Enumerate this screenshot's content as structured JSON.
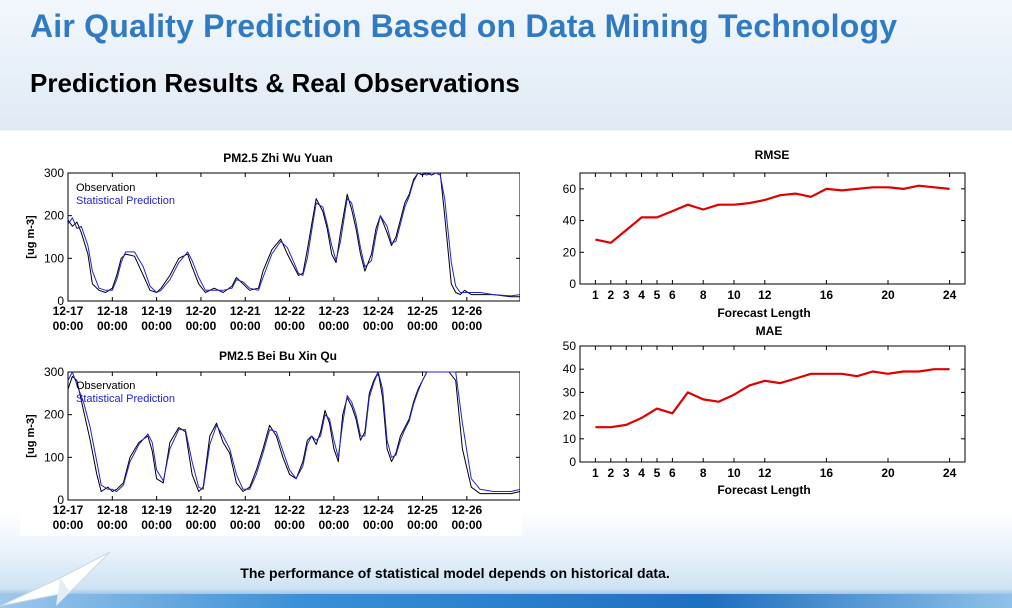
{
  "header": {
    "title": "Air Quality Prediction Based on Data Mining Technology",
    "subtitle": "Prediction Results & Real Observations"
  },
  "caption": "The performance of statistical model depends on historical data.",
  "colors": {
    "title": "#2f7ac2",
    "observation": "#000000",
    "prediction": "#2323d8",
    "error_line": "#e00000"
  },
  "chart_data": [
    {
      "type": "line",
      "title": "PM2.5  Zhi Wu Yuan",
      "ylabel": "[ug m-3]",
      "xlabel": "",
      "ylim": [
        0,
        300
      ],
      "yticks": [
        0,
        100,
        200,
        300
      ],
      "xlim": [
        0,
        10.2
      ],
      "xticks": [
        0,
        1,
        2,
        3,
        4,
        5,
        6,
        7,
        8,
        9
      ],
      "xtick_labels": [
        [
          "12-17",
          "00:00"
        ],
        [
          "12-18",
          "00:00"
        ],
        [
          "12-19",
          "00:00"
        ],
        [
          "12-20",
          "00:00"
        ],
        [
          "12-21",
          "00:00"
        ],
        [
          "12-22",
          "00:00"
        ],
        [
          "12-23",
          "00:00"
        ],
        [
          "12-24",
          "00:00"
        ],
        [
          "12-25",
          "00:00"
        ],
        [
          "12-26",
          "00:00"
        ]
      ],
      "legend": "top-left",
      "series": [
        {
          "name": "Observation",
          "color": "#000000",
          "x": [
            0,
            0.1,
            0.2,
            0.3,
            0.45,
            0.55,
            0.7,
            0.85,
            1.0,
            1.1,
            1.2,
            1.3,
            1.5,
            1.7,
            1.85,
            2.0,
            2.1,
            2.3,
            2.5,
            2.7,
            2.8,
            2.95,
            3.1,
            3.3,
            3.5,
            3.7,
            3.8,
            3.95,
            4.1,
            4.3,
            4.4,
            4.6,
            4.8,
            4.95,
            5.1,
            5.2,
            5.3,
            5.4,
            5.5,
            5.6,
            5.75,
            5.85,
            5.95,
            6.05,
            6.15,
            6.3,
            6.4,
            6.5,
            6.6,
            6.7,
            6.85,
            6.95,
            7.05,
            7.2,
            7.3,
            7.4,
            7.5,
            7.6,
            7.7,
            7.8,
            7.9,
            8.0,
            8.1,
            8.2,
            8.3,
            8.4,
            8.5,
            8.65,
            8.75,
            8.85,
            8.95,
            9.1,
            9.3,
            9.6,
            10.0,
            10.2
          ],
          "y": [
            190,
            175,
            185,
            160,
            110,
            40,
            25,
            20,
            30,
            60,
            100,
            110,
            105,
            60,
            25,
            20,
            30,
            60,
            100,
            110,
            80,
            40,
            20,
            30,
            20,
            35,
            55,
            40,
            25,
            30,
            70,
            120,
            145,
            110,
            80,
            60,
            65,
            120,
            180,
            240,
            210,
            170,
            110,
            90,
            160,
            250,
            215,
            170,
            110,
            70,
            110,
            170,
            200,
            160,
            130,
            150,
            190,
            230,
            250,
            285,
            300,
            295,
            300,
            295,
            300,
            300,
            200,
            40,
            20,
            15,
            25,
            15,
            15,
            15,
            10,
            10
          ]
        },
        {
          "name": "Statistical Prediction",
          "color": "#2323d8",
          "x": [
            0,
            0.1,
            0.2,
            0.3,
            0.45,
            0.55,
            0.7,
            0.85,
            1.0,
            1.1,
            1.2,
            1.3,
            1.5,
            1.7,
            1.85,
            2.0,
            2.1,
            2.3,
            2.5,
            2.7,
            2.8,
            2.95,
            3.1,
            3.3,
            3.5,
            3.7,
            3.8,
            3.95,
            4.1,
            4.3,
            4.4,
            4.6,
            4.8,
            4.95,
            5.1,
            5.2,
            5.3,
            5.4,
            5.5,
            5.6,
            5.75,
            5.85,
            5.95,
            6.05,
            6.15,
            6.3,
            6.4,
            6.5,
            6.6,
            6.7,
            6.85,
            6.95,
            7.05,
            7.2,
            7.3,
            7.4,
            7.5,
            7.6,
            7.7,
            7.8,
            7.9,
            8.0,
            8.1,
            8.2,
            8.3,
            8.4,
            8.5,
            8.65,
            8.75,
            8.85,
            8.95,
            9.1,
            9.3,
            9.6,
            10.0,
            10.2
          ],
          "y": [
            180,
            195,
            170,
            175,
            130,
            70,
            30,
            25,
            25,
            50,
            90,
            115,
            115,
            80,
            35,
            20,
            25,
            50,
            90,
            115,
            95,
            55,
            25,
            25,
            25,
            30,
            50,
            45,
            30,
            25,
            55,
            110,
            140,
            125,
            90,
            65,
            60,
            100,
            165,
            230,
            220,
            180,
            130,
            95,
            140,
            240,
            230,
            185,
            125,
            80,
            95,
            155,
            200,
            175,
            135,
            140,
            180,
            220,
            245,
            280,
            300,
            300,
            295,
            300,
            300,
            295,
            240,
            90,
            35,
            20,
            20,
            20,
            20,
            15,
            12,
            15
          ]
        }
      ]
    },
    {
      "type": "line",
      "title": "PM2.5  Bei Bu Xin Qu",
      "ylabel": "[ug m-3]",
      "xlabel": "",
      "ylim": [
        0,
        300
      ],
      "yticks": [
        0,
        100,
        200,
        300
      ],
      "xlim": [
        0,
        10.2
      ],
      "xticks": [
        0,
        1,
        2,
        3,
        4,
        5,
        6,
        7,
        8,
        9
      ],
      "xtick_labels": [
        [
          "12-17",
          "00:00"
        ],
        [
          "12-18",
          "00:00"
        ],
        [
          "12-19",
          "00:00"
        ],
        [
          "12-20",
          "00:00"
        ],
        [
          "12-21",
          "00:00"
        ],
        [
          "12-22",
          "00:00"
        ],
        [
          "12-23",
          "00:00"
        ],
        [
          "12-24",
          "00:00"
        ],
        [
          "12-25",
          "00:00"
        ],
        [
          "12-26",
          "00:00"
        ]
      ],
      "legend": "top-left",
      "series": [
        {
          "name": "Observation",
          "color": "#000000",
          "x": [
            0,
            0.1,
            0.2,
            0.35,
            0.5,
            0.65,
            0.75,
            0.9,
            1.0,
            1.1,
            1.25,
            1.4,
            1.6,
            1.8,
            1.9,
            2.0,
            2.15,
            2.3,
            2.5,
            2.65,
            2.8,
            2.95,
            3.05,
            3.2,
            3.35,
            3.5,
            3.65,
            3.8,
            3.95,
            4.1,
            4.25,
            4.4,
            4.55,
            4.7,
            4.85,
            5.0,
            5.15,
            5.3,
            5.4,
            5.5,
            5.6,
            5.7,
            5.8,
            5.9,
            6.0,
            6.1,
            6.2,
            6.3,
            6.4,
            6.5,
            6.6,
            6.7,
            6.8,
            6.9,
            7.0,
            7.1,
            7.2,
            7.3,
            7.4,
            7.5,
            7.6,
            7.7,
            7.8,
            7.9,
            8.0,
            8.1,
            8.2,
            8.3,
            8.4,
            8.5,
            8.6,
            8.75,
            8.9,
            9.1,
            9.3,
            9.6,
            10.0,
            10.2
          ],
          "y": [
            260,
            290,
            280,
            210,
            140,
            60,
            20,
            30,
            20,
            25,
            40,
            100,
            135,
            150,
            115,
            50,
            40,
            135,
            170,
            160,
            60,
            20,
            30,
            150,
            180,
            135,
            110,
            40,
            20,
            30,
            70,
            120,
            175,
            150,
            100,
            60,
            50,
            90,
            140,
            150,
            130,
            160,
            210,
            180,
            120,
            90,
            200,
            240,
            220,
            190,
            140,
            160,
            250,
            280,
            300,
            240,
            120,
            90,
            110,
            150,
            170,
            190,
            230,
            260,
            280,
            300,
            300,
            300,
            300,
            300,
            300,
            280,
            120,
            30,
            15,
            15,
            15,
            20
          ]
        },
        {
          "name": "Statistical Prediction",
          "color": "#2323d8",
          "x": [
            0,
            0.1,
            0.2,
            0.35,
            0.5,
            0.65,
            0.75,
            0.9,
            1.0,
            1.1,
            1.25,
            1.4,
            1.6,
            1.8,
            1.9,
            2.0,
            2.15,
            2.3,
            2.5,
            2.65,
            2.8,
            2.95,
            3.05,
            3.2,
            3.35,
            3.5,
            3.65,
            3.8,
            3.95,
            4.1,
            4.25,
            4.4,
            4.55,
            4.7,
            4.85,
            5.0,
            5.15,
            5.3,
            5.4,
            5.5,
            5.6,
            5.7,
            5.8,
            5.9,
            6.0,
            6.1,
            6.2,
            6.3,
            6.4,
            6.5,
            6.6,
            6.7,
            6.8,
            6.9,
            7.0,
            7.1,
            7.2,
            7.3,
            7.4,
            7.5,
            7.6,
            7.7,
            7.8,
            7.9,
            8.0,
            8.1,
            8.2,
            8.3,
            8.4,
            8.5,
            8.6,
            8.75,
            8.9,
            9.1,
            9.3,
            9.6,
            10.0,
            10.2
          ],
          "y": [
            280,
            300,
            270,
            230,
            170,
            90,
            35,
            25,
            25,
            20,
            35,
            90,
            130,
            155,
            135,
            70,
            45,
            120,
            165,
            165,
            90,
            30,
            25,
            130,
            175,
            150,
            120,
            60,
            25,
            25,
            60,
            110,
            165,
            160,
            115,
            70,
            50,
            80,
            130,
            150,
            140,
            150,
            200,
            190,
            140,
            100,
            180,
            245,
            230,
            200,
            150,
            150,
            240,
            275,
            300,
            260,
            140,
            100,
            105,
            140,
            165,
            185,
            225,
            255,
            280,
            300,
            300,
            300,
            300,
            300,
            300,
            300,
            180,
            50,
            25,
            20,
            20,
            25
          ]
        }
      ]
    },
    {
      "type": "line",
      "title": "RMSE",
      "xlabel": "Forecast Length",
      "ylabel": "",
      "xlim": [
        0,
        25
      ],
      "ylim": [
        0,
        70
      ],
      "yticks": [
        0,
        20,
        40,
        60
      ],
      "xticks": [
        1,
        2,
        3,
        4,
        5,
        6,
        8,
        10,
        12,
        16,
        20,
        24
      ],
      "series": [
        {
          "name": "",
          "color": "#e00000",
          "x": [
            1,
            2,
            3,
            4,
            5,
            6,
            7,
            8,
            9,
            10,
            11,
            12,
            13,
            14,
            15,
            16,
            17,
            18,
            19,
            20,
            21,
            22,
            23,
            24
          ],
          "y": [
            28,
            26,
            34,
            42,
            42,
            46,
            50,
            47,
            50,
            50,
            51,
            53,
            56,
            57,
            55,
            60,
            59,
            60,
            61,
            61,
            60,
            62,
            61,
            60
          ]
        }
      ]
    },
    {
      "type": "line",
      "title": "MAE",
      "xlabel": "Forecast Length",
      "ylabel": "",
      "xlim": [
        0,
        25
      ],
      "ylim": [
        0,
        50
      ],
      "yticks": [
        0,
        10,
        20,
        30,
        40,
        50
      ],
      "xticks": [
        1,
        2,
        3,
        4,
        5,
        6,
        8,
        10,
        12,
        16,
        20,
        24
      ],
      "series": [
        {
          "name": "",
          "color": "#e00000",
          "x": [
            1,
            2,
            3,
            4,
            5,
            6,
            7,
            8,
            9,
            10,
            11,
            12,
            13,
            14,
            15,
            16,
            17,
            18,
            19,
            20,
            21,
            22,
            23,
            24
          ],
          "y": [
            15,
            15,
            16,
            19,
            23,
            21,
            30,
            27,
            26,
            29,
            33,
            35,
            34,
            36,
            38,
            38,
            38,
            37,
            39,
            38,
            39,
            39,
            40,
            40
          ]
        }
      ]
    }
  ]
}
